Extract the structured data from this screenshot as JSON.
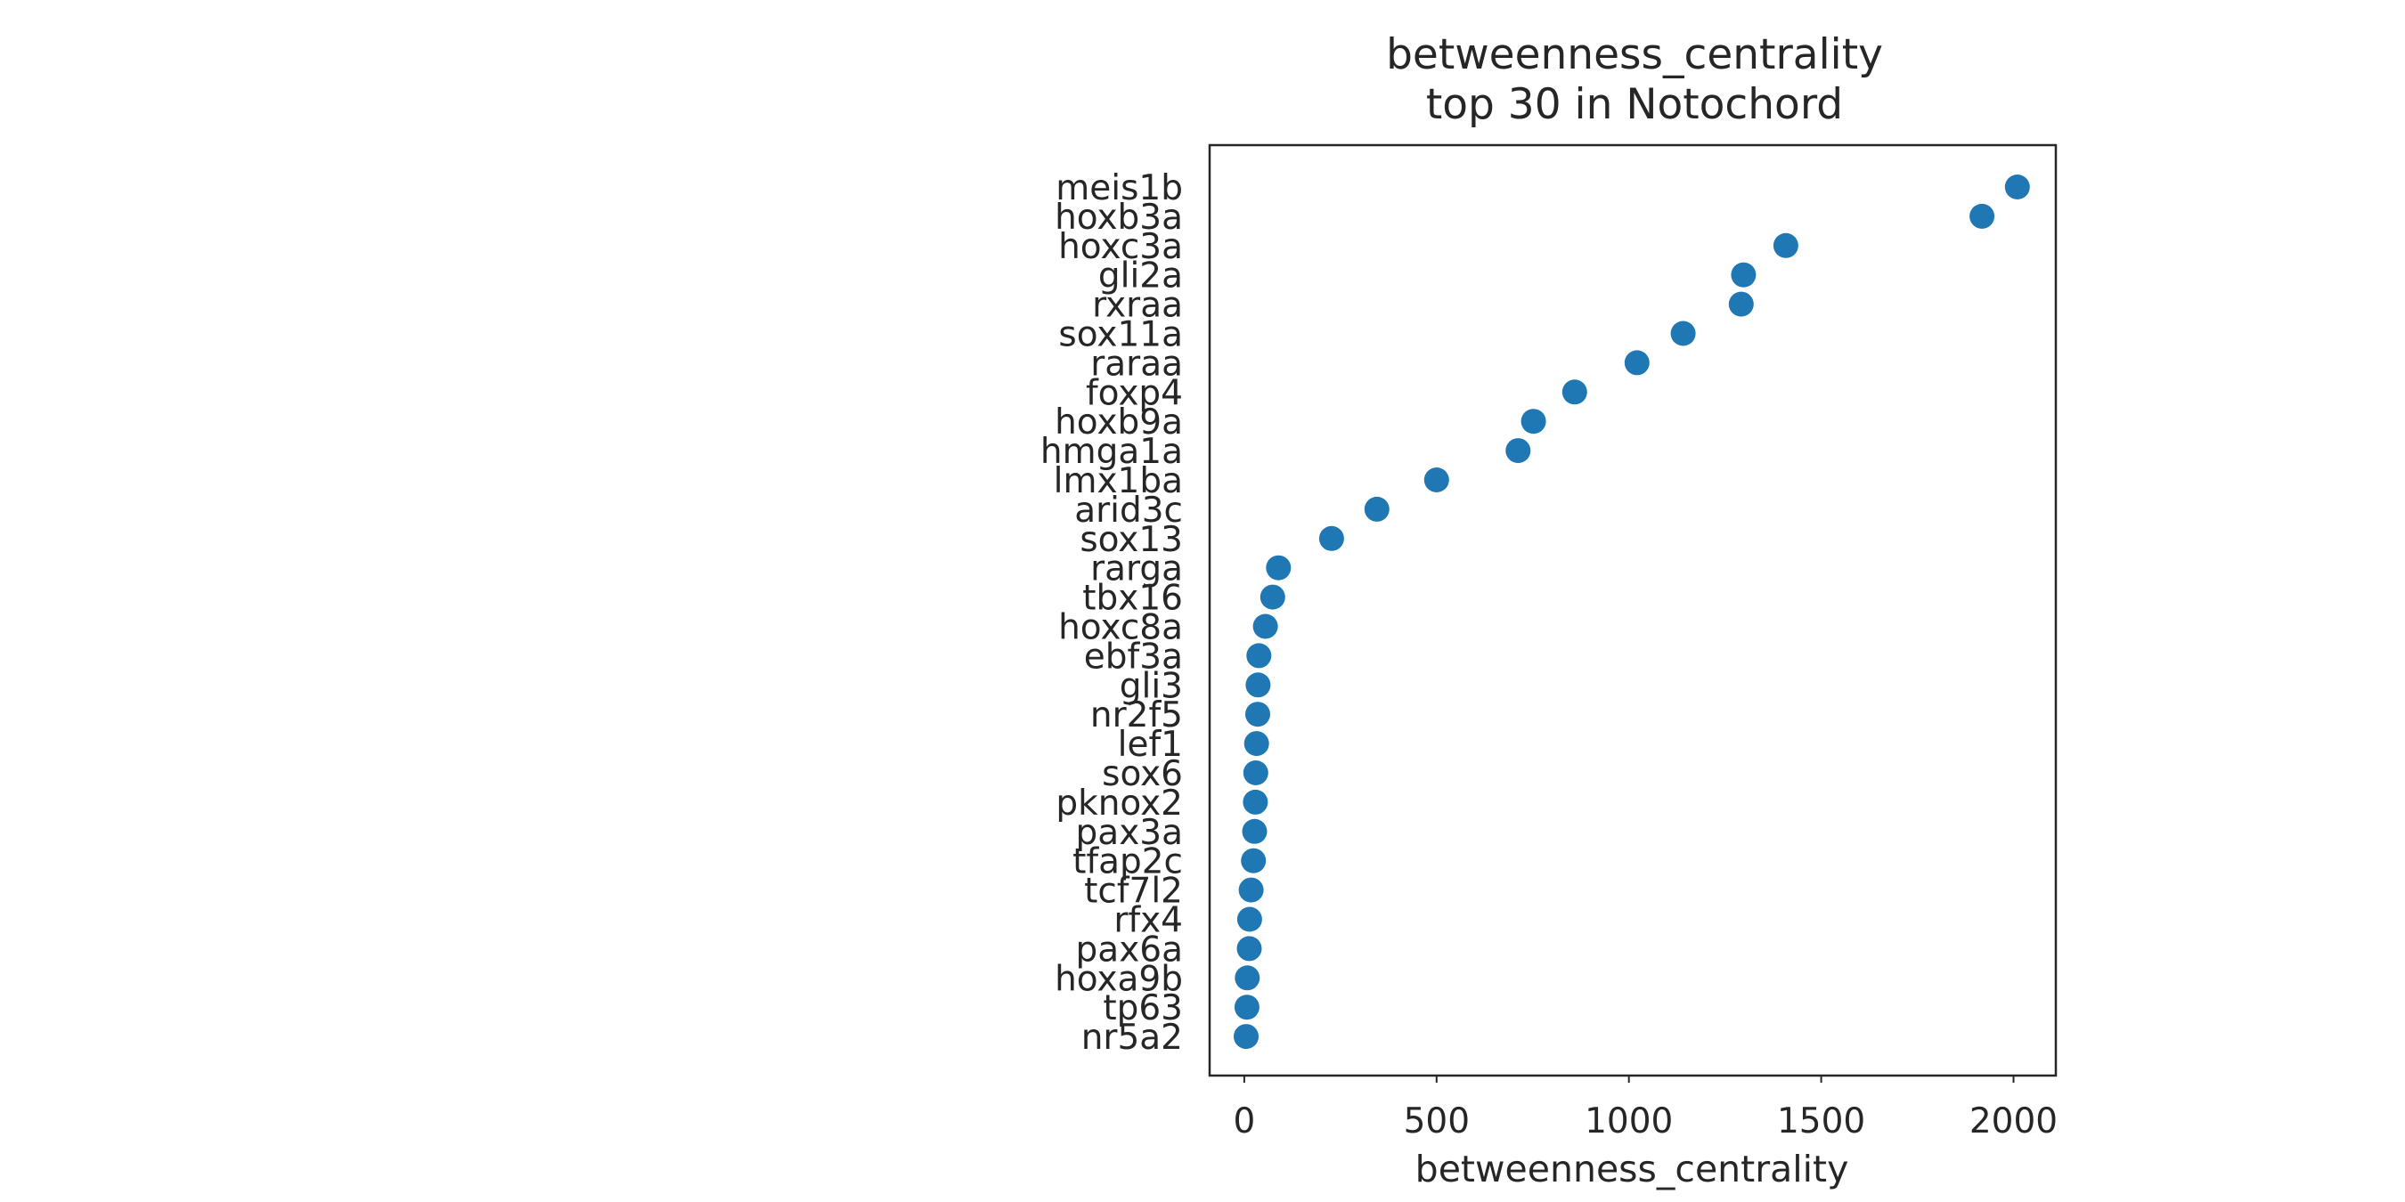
{
  "chart_data": {
    "type": "scatter",
    "title_lines": [
      "betweenness_centrality",
      "top 30 in Notochord"
    ],
    "xlabel": "betweenness_centrality",
    "ylabel": "",
    "xlim": [
      -90,
      2110
    ],
    "xticks": [
      0,
      500,
      1000,
      1500,
      2000
    ],
    "grid": false,
    "legend": "none",
    "marker_color": "#1f77b4",
    "axes_color": "#262626",
    "categories": [
      "meis1b",
      "hoxb3a",
      "hoxc3a",
      "gli2a",
      "rxraa",
      "sox11a",
      "raraa",
      "foxp4",
      "hoxb9a",
      "hmga1a",
      "lmx1ba",
      "arid3c",
      "sox13",
      "rarga",
      "tbx16",
      "hoxc8a",
      "ebf3a",
      "gli3",
      "nr2f5",
      "lef1",
      "sox6",
      "pknox2",
      "pax3a",
      "tfap2c",
      "tcf7l2",
      "rfx4",
      "pax6a",
      "hoxa9b",
      "tp63",
      "nr5a2"
    ],
    "values": [
      2010,
      1918,
      1408,
      1298,
      1292,
      1141,
      1021,
      859,
      752,
      712,
      500,
      345,
      227,
      89,
      74,
      55,
      38,
      36,
      35,
      32,
      30,
      29,
      27,
      24,
      18,
      14,
      13,
      8,
      7,
      5
    ]
  }
}
